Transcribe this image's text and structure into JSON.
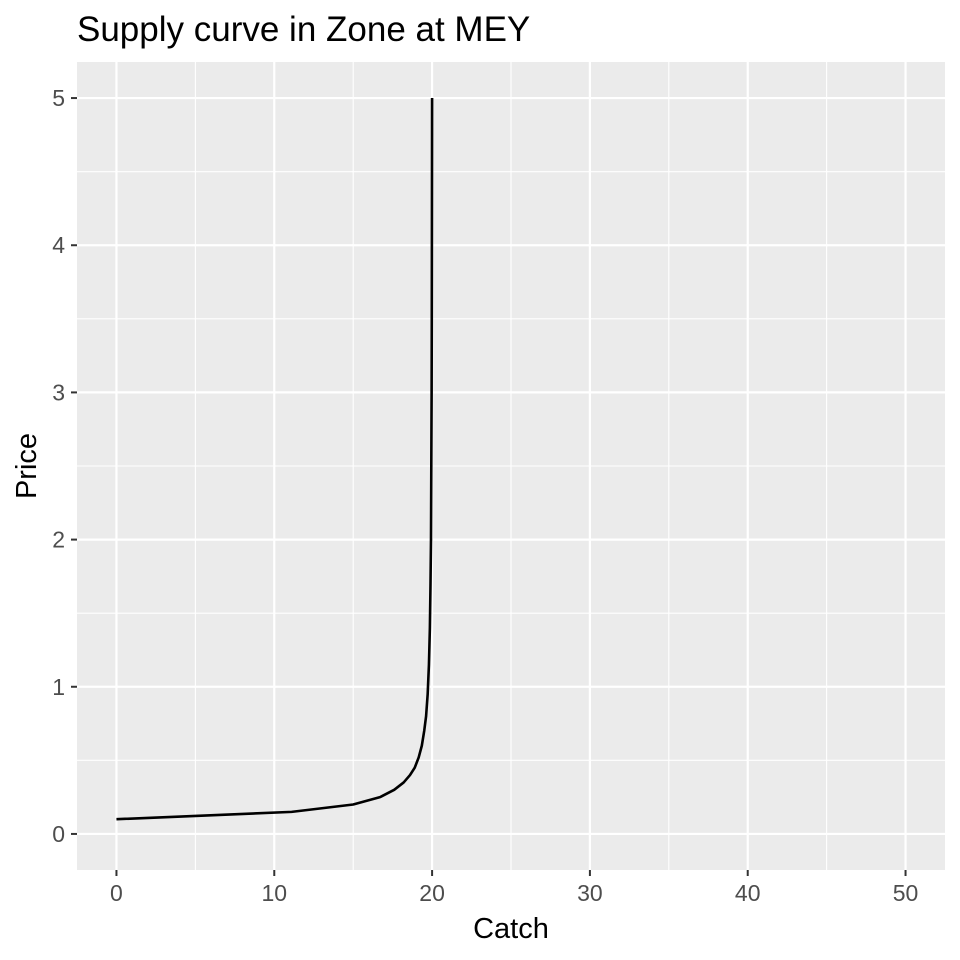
{
  "chart_data": {
    "type": "line",
    "title": "Supply curve  in Zone at MEY",
    "xlabel": "Catch",
    "ylabel": "Price",
    "xlim": [
      -2.5,
      52.5
    ],
    "ylim": [
      -0.245,
      5.245
    ],
    "x_ticks": [
      0,
      10,
      20,
      30,
      40,
      50
    ],
    "x_tick_labels": [
      "0",
      "10",
      "20",
      "30",
      "40",
      "50"
    ],
    "x_minor_ticks": [
      5,
      15,
      25,
      35,
      45
    ],
    "y_ticks": [
      0,
      1,
      2,
      3,
      4,
      5
    ],
    "y_tick_labels": [
      "0",
      "1",
      "2",
      "3",
      "4",
      "5"
    ],
    "y_minor_ticks": [
      0.5,
      1.5,
      2.5,
      3.5,
      4.5
    ],
    "grid": true,
    "legend": "none",
    "background": "#ebebeb",
    "line_color": "#000000",
    "series": [
      {
        "x": [
          0,
          11.1,
          15.0,
          16.7,
          17.6,
          18.2,
          18.6,
          18.9,
          19.15,
          19.35,
          19.5,
          19.62,
          19.72,
          19.8,
          19.86,
          19.9,
          19.93,
          19.95,
          19.97,
          19.98,
          19.99,
          20.0
        ],
        "y": [
          0.1,
          0.15,
          0.2,
          0.25,
          0.3,
          0.35,
          0.4,
          0.45,
          0.52,
          0.6,
          0.7,
          0.8,
          0.95,
          1.15,
          1.4,
          1.7,
          2.0,
          2.5,
          3.0,
          3.5,
          4.2,
          5.0
        ]
      }
    ]
  }
}
